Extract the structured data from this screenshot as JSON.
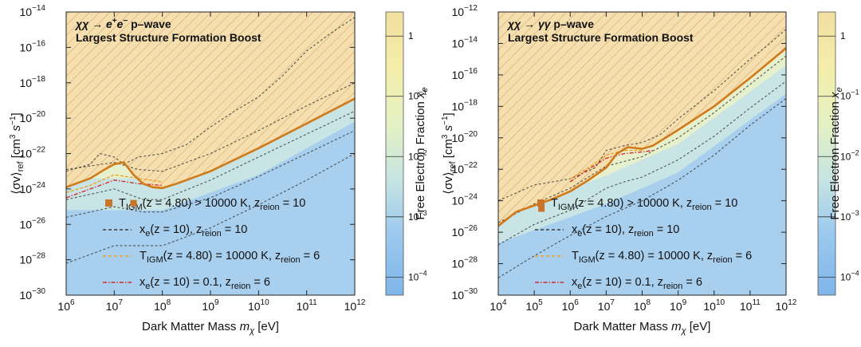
{
  "chart_data": [
    {
      "type": "heatmap",
      "title": "χχ → e+e− p-wave",
      "subtitle": "Largest Structure Formation Boost",
      "title_parts": [
        "χχ → e",
        "+",
        "e",
        "−",
        " p–wave"
      ],
      "xlabel_parts": [
        "Dark Matter Mass ",
        "m",
        "χ",
        " [eV]"
      ],
      "ylabel_parts": [
        "⟨σv⟩",
        "ref",
        " [cm",
        "3",
        " s",
        "−1",
        "]"
      ],
      "colorbar_label_parts": [
        "Free Electron Fraction ",
        "x",
        "e"
      ],
      "xscale": "log",
      "yscale": "log",
      "xlim": [
        1000000.0,
        1000000000000.0
      ],
      "ylim": [
        1e-30,
        1e-14
      ],
      "x_ticks": [
        {
          "b": "10",
          "e": "6",
          "v": 6
        },
        {
          "b": "10",
          "e": "7",
          "v": 7
        },
        {
          "b": "10",
          "e": "8",
          "v": 8
        },
        {
          "b": "10",
          "e": "9",
          "v": 9
        },
        {
          "b": "10",
          "e": "10",
          "v": 10
        },
        {
          "b": "10",
          "e": "11",
          "v": 11
        },
        {
          "b": "10",
          "e": "12",
          "v": 12
        }
      ],
      "y_ticks": [
        {
          "b": "10",
          "e": "−14",
          "v": -14
        },
        {
          "b": "10",
          "e": "−16",
          "v": -16
        },
        {
          "b": "10",
          "e": "−18",
          "v": -18
        },
        {
          "b": "10",
          "e": "−20",
          "v": -20
        },
        {
          "b": "10",
          "e": "−22",
          "v": -22
        },
        {
          "b": "10",
          "e": "−24",
          "v": -24
        },
        {
          "b": "10",
          "e": "−26",
          "v": -26
        },
        {
          "b": "10",
          "e": "−28",
          "v": -28
        },
        {
          "b": "10",
          "e": "−30",
          "v": -30
        }
      ],
      "colorbar_ticks": [
        {
          "b": "1",
          "e": "",
          "v": 0
        },
        {
          "b": "10",
          "e": "−1",
          "v": -1
        },
        {
          "b": "10",
          "e": "−2",
          "v": -2
        },
        {
          "b": "10",
          "e": "−3",
          "v": -3
        },
        {
          "b": "10",
          "e": "−4",
          "v": -4
        }
      ],
      "colorbar_range": [
        -4.3,
        0.4
      ],
      "thick_orange_line": {
        "x": [
          6,
          6.5,
          6.8,
          7.0,
          7.2,
          7.4,
          7.6,
          7.8,
          8.0,
          8.3,
          9,
          10,
          11,
          12
        ],
        "y": [
          -23.9,
          -23.4,
          -22.9,
          -22.6,
          -22.5,
          -23.2,
          -23.7,
          -23.9,
          -23.95,
          -23.7,
          -23.0,
          -21.7,
          -20.3,
          -18.9
        ]
      },
      "contours": [
        {
          "x": [
            6,
            6.5,
            6.7,
            7.0,
            7.2,
            7.5,
            8,
            8.5,
            9,
            9.5,
            10,
            10.5,
            11,
            11.5,
            12
          ],
          "y": [
            -23.0,
            -22.6,
            -22.0,
            -22.2,
            -22.6,
            -22.2,
            -22.0,
            -21.5,
            -20.5,
            -19.6,
            -18.8,
            -17.6,
            -16.2,
            -15.2,
            -14.3
          ]
        },
        {
          "x": [
            6,
            7,
            7.5,
            8,
            9,
            10,
            11,
            12
          ],
          "y": [
            -22.9,
            -22.5,
            -22.9,
            -23.0,
            -22.0,
            -20.7,
            -19.3,
            -18.0
          ]
        },
        {
          "x": [
            6,
            7,
            7.6,
            8,
            9,
            10,
            11,
            12
          ],
          "y": [
            -24.6,
            -24.0,
            -24.6,
            -24.6,
            -23.5,
            -22.2,
            -20.9,
            -19.6
          ]
        },
        {
          "x": [
            6,
            7,
            7.6,
            8,
            9,
            10,
            11,
            12
          ],
          "y": [
            -25.6,
            -25.0,
            -25.3,
            -25.3,
            -24.5,
            -23.3,
            -22.0,
            -20.7
          ]
        },
        {
          "x": [
            6,
            7,
            7.5,
            8,
            9,
            10,
            11,
            12
          ],
          "y": [
            -28.2,
            -27.2,
            -27.2,
            -27.2,
            -26.2,
            -24.9,
            -23.5,
            -22.0
          ]
        }
      ],
      "contour_types": [
        "main",
        "main",
        "main",
        "main",
        "main"
      ],
      "red_line": {
        "x": [
          6,
          6.5,
          7,
          7.5,
          8
        ],
        "y": [
          -24.5,
          -24.0,
          -23.5,
          -23.7,
          -23.8
        ]
      },
      "orange_dash": {
        "x": [
          6,
          6.5,
          7,
          7.5,
          8
        ],
        "y": [
          -24.2,
          -23.8,
          -23.2,
          -23.4,
          -23.6
        ]
      },
      "gradient_center": [
        [
          6,
          -22
        ],
        [
          8,
          -22
        ],
        [
          10,
          -20
        ],
        [
          12,
          -17
        ]
      ],
      "marker": {
        "x": 7.4,
        "y": -24.8
      },
      "legend": [
        {
          "label": "T",
          "sub": "IGM",
          "mid": "(z = 4.80) > 10000 K, z",
          "sub2": "reion",
          "tail": " = 10",
          "kind": "marker"
        },
        {
          "label": "x",
          "sub": "e",
          "mid": "(z = 10), z",
          "sub2": "reion",
          "tail": " = 10",
          "kind": "black"
        },
        {
          "label": "T",
          "sub": "IGM",
          "mid": "(z = 4.80) = 10000 K, z",
          "sub2": "reion",
          "tail": " = 6",
          "kind": "orange"
        },
        {
          "label": "x",
          "sub": "e",
          "mid": "(z = 10) = 0.1, z",
          "sub2": "reion",
          "tail": " = 6",
          "kind": "red"
        }
      ]
    },
    {
      "type": "heatmap",
      "title": "χχ → γγ p-wave",
      "subtitle": "Largest Structure Formation Boost",
      "title_parts": [
        "χχ → γγ",
        "",
        "",
        "",
        " p–wave"
      ],
      "xlabel_parts": [
        "Dark Matter Mass ",
        "m",
        "χ",
        " [eV]"
      ],
      "ylabel_parts": [
        "⟨σv⟩",
        "ref",
        " [cm",
        "3",
        " s",
        "−1",
        "]"
      ],
      "colorbar_label_parts": [
        "Free Electron Fraction ",
        "x",
        "e"
      ],
      "xscale": "log",
      "yscale": "log",
      "xlim": [
        10000.0,
        1000000000000.0
      ],
      "ylim": [
        1e-30,
        1e-12
      ],
      "x_ticks": [
        {
          "b": "10",
          "e": "4",
          "v": 4
        },
        {
          "b": "10",
          "e": "5",
          "v": 5
        },
        {
          "b": "10",
          "e": "6",
          "v": 6
        },
        {
          "b": "10",
          "e": "7",
          "v": 7
        },
        {
          "b": "10",
          "e": "8",
          "v": 8
        },
        {
          "b": "10",
          "e": "9",
          "v": 9
        },
        {
          "b": "10",
          "e": "10",
          "v": 10
        },
        {
          "b": "10",
          "e": "11",
          "v": 11
        },
        {
          "b": "10",
          "e": "12",
          "v": 12
        }
      ],
      "y_ticks": [
        {
          "b": "10",
          "e": "−12",
          "v": -12
        },
        {
          "b": "10",
          "e": "−14",
          "v": -14
        },
        {
          "b": "10",
          "e": "−16",
          "v": -16
        },
        {
          "b": "10",
          "e": "−18",
          "v": -18
        },
        {
          "b": "10",
          "e": "−20",
          "v": -20
        },
        {
          "b": "10",
          "e": "−22",
          "v": -22
        },
        {
          "b": "10",
          "e": "−24",
          "v": -24
        },
        {
          "b": "10",
          "e": "−26",
          "v": -26
        },
        {
          "b": "10",
          "e": "−28",
          "v": -28
        },
        {
          "b": "10",
          "e": "−30",
          "v": -30
        }
      ],
      "colorbar_ticks": [
        {
          "b": "1",
          "e": "",
          "v": 0
        },
        {
          "b": "10",
          "e": "−1",
          "v": -1
        },
        {
          "b": "10",
          "e": "−2",
          "v": -2
        },
        {
          "b": "10",
          "e": "−3",
          "v": -3
        },
        {
          "b": "10",
          "e": "−4",
          "v": -4
        }
      ],
      "colorbar_range": [
        -4.3,
        0.4
      ],
      "thick_orange_line": {
        "x": [
          4,
          4.5,
          5,
          5.5,
          6,
          6.5,
          7,
          7.3,
          7.6,
          8,
          8.3,
          9,
          10,
          11,
          12
        ],
        "y": [
          -25.6,
          -24.7,
          -24.3,
          -23.9,
          -23.4,
          -22.7,
          -21.9,
          -21.0,
          -20.6,
          -20.7,
          -20.5,
          -19.5,
          -18.0,
          -16.2,
          -14.3
        ]
      },
      "contours": [
        {
          "x": [
            4,
            5,
            6,
            6.7,
            7,
            7.5,
            8,
            8.5,
            9,
            10,
            11,
            11.5,
            12
          ],
          "y": [
            -24.0,
            -23.0,
            -22.6,
            -21.9,
            -20.8,
            -20.5,
            -20.3,
            -19.8,
            -18.8,
            -17.0,
            -15.0,
            -14.1,
            -13.1
          ]
        },
        {
          "x": [
            4,
            5,
            6,
            7,
            7.5,
            8,
            9,
            10,
            11,
            12
          ],
          "y": [
            -25.4,
            -24.2,
            -23.2,
            -21.8,
            -21.5,
            -21.2,
            -20.0,
            -18.4,
            -16.6,
            -14.8
          ]
        },
        {
          "x": [
            4,
            5,
            6,
            7,
            7.5,
            8,
            9,
            10,
            11,
            12
          ],
          "y": [
            -26.8,
            -25.5,
            -24.6,
            -23.2,
            -22.8,
            -22.5,
            -21.4,
            -19.9,
            -18.1,
            -16.4
          ]
        },
        {
          "x": [
            4,
            5,
            6,
            7,
            8,
            9,
            10,
            11,
            12
          ],
          "y": [
            -28.9,
            -27.5,
            -26.2,
            -25.0,
            -24.0,
            -22.7,
            -21.1,
            -19.2,
            -17.5
          ]
        }
      ],
      "contour_types": [
        "main",
        "main",
        "main",
        "main"
      ],
      "red_line": {
        "x": [
          6,
          6.5,
          7,
          7.5,
          8,
          8.3
        ],
        "y": [
          -22.8,
          -22.0,
          -21.3,
          -21.0,
          -20.9,
          -20.8
        ]
      },
      "orange_dash": {
        "x": [
          6,
          6.5,
          7,
          7.5,
          8
        ],
        "y": [
          -22.6,
          -21.9,
          -21.1,
          -20.8,
          -20.8
        ]
      },
      "gradient_center": [
        [
          4,
          -23.5
        ],
        [
          7,
          -21
        ],
        [
          9,
          -19
        ],
        [
          12,
          -14
        ]
      ],
      "marker": {
        "x": 5.2,
        "y": -24.5
      },
      "legend": [
        {
          "label": "T",
          "sub": "IGM",
          "mid": "(z = 4.80) > 10000 K, z",
          "sub2": "reion",
          "tail": " = 10",
          "kind": "marker"
        },
        {
          "label": "x",
          "sub": "e",
          "mid": "(z = 10), z",
          "sub2": "reion",
          "tail": " = 10",
          "kind": "black"
        },
        {
          "label": "T",
          "sub": "IGM",
          "mid": "(z = 4.80) = 10000 K, z",
          "sub2": "reion",
          "tail": " = 6",
          "kind": "orange"
        },
        {
          "label": "x",
          "sub": "e",
          "mid": "(z = 10) = 0.1, z",
          "sub2": "reion",
          "tail": " = 6",
          "kind": "red"
        }
      ]
    }
  ],
  "colors": {
    "hatch_fill": "#f5dfaf",
    "hatch_line": "#c9955a",
    "excluded_boundary": "#d07a1a",
    "bg_low": "#9fc8ee",
    "bg_high": "#f3e9a6",
    "contour": "#333333",
    "red": "#d62728",
    "orange_dash": "#f0a020",
    "marker": "#c8742a"
  }
}
